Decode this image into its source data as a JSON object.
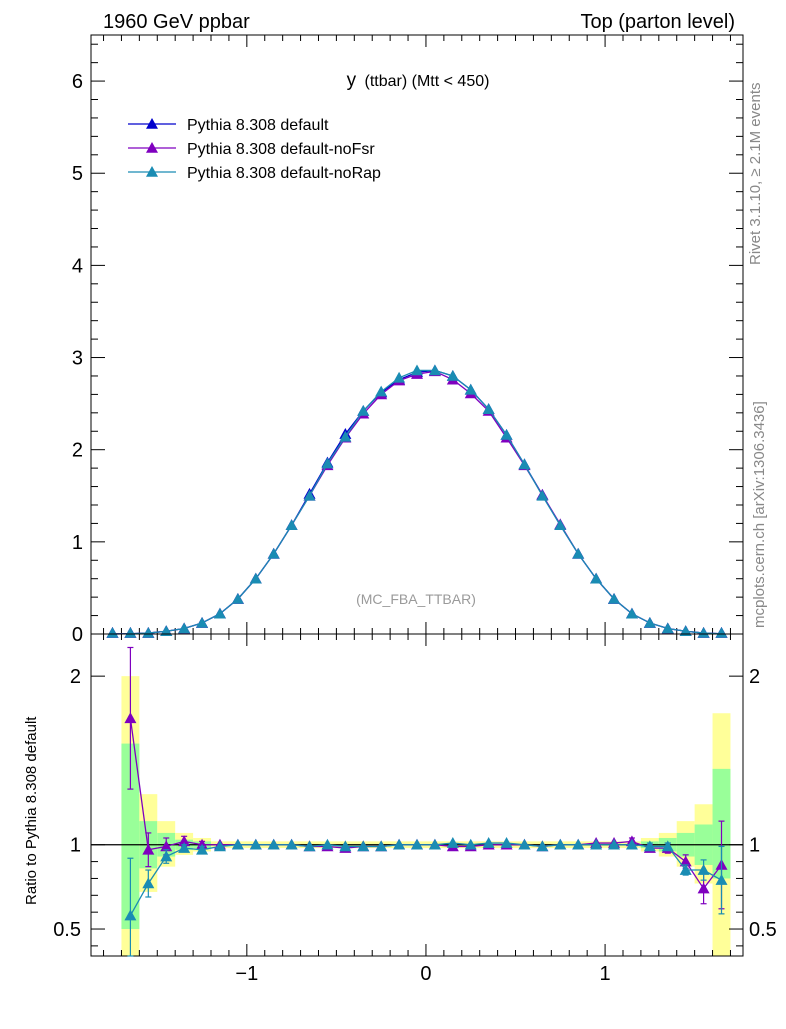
{
  "header": {
    "left": "1960 GeV ppbar",
    "right": "Top (parton level)"
  },
  "side_labels": {
    "rivet": "Rivet 3.1.10, ≥ 2.1M events",
    "mcplots": "mcplots.cern.ch [arXiv:1306.3436]"
  },
  "chart_data": [
    {
      "type": "line",
      "title_main": "y",
      "title_sub": "(ttbar) (Mtt < 450)",
      "watermark": "(MC_FBA_TTBAR)",
      "xlim": [
        -1.87,
        1.77
      ],
      "ylim": [
        0,
        6.5
      ],
      "yticks": [
        0,
        1,
        2,
        3,
        4,
        5,
        6
      ],
      "ytick_labels": [
        "0",
        "1",
        "2",
        "3",
        "4",
        "5",
        "6"
      ],
      "legend_position": "top-left",
      "x": [
        -1.75,
        -1.65,
        -1.55,
        -1.45,
        -1.35,
        -1.25,
        -1.15,
        -1.05,
        -0.95,
        -0.85,
        -0.75,
        -0.65,
        -0.55,
        -0.45,
        -0.35,
        -0.25,
        -0.15,
        -0.05,
        0.05,
        0.15,
        0.25,
        0.35,
        0.45,
        0.55,
        0.65,
        0.75,
        0.85,
        0.95,
        1.05,
        1.15,
        1.25,
        1.35,
        1.45,
        1.55,
        1.65
      ],
      "series": [
        {
          "name": "Pythia 8.308 default",
          "color": "#0000cc",
          "values": [
            0.0,
            0.003,
            0.01,
            0.03,
            0.06,
            0.12,
            0.22,
            0.38,
            0.6,
            0.87,
            1.18,
            1.52,
            1.86,
            2.17,
            2.42,
            2.62,
            2.76,
            2.84,
            2.86,
            2.8,
            2.65,
            2.44,
            2.16,
            1.84,
            1.51,
            1.18,
            0.87,
            0.6,
            0.38,
            0.22,
            0.12,
            0.06,
            0.03,
            0.01,
            0.003
          ]
        },
        {
          "name": "Pythia 8.308 default-noFsr",
          "color": "#7f00bf",
          "values": [
            0.0,
            0.003,
            0.01,
            0.03,
            0.06,
            0.12,
            0.22,
            0.38,
            0.6,
            0.87,
            1.18,
            1.5,
            1.83,
            2.13,
            2.39,
            2.6,
            2.75,
            2.82,
            2.85,
            2.76,
            2.61,
            2.42,
            2.13,
            1.83,
            1.51,
            1.19,
            0.87,
            0.6,
            0.38,
            0.22,
            0.12,
            0.06,
            0.03,
            0.01,
            0.003
          ]
        },
        {
          "name": "Pythia 8.308 default-noRap",
          "color": "#1a8cb3",
          "values": [
            0.0,
            0.003,
            0.01,
            0.03,
            0.06,
            0.12,
            0.22,
            0.38,
            0.6,
            0.87,
            1.18,
            1.5,
            1.85,
            2.14,
            2.42,
            2.63,
            2.78,
            2.86,
            2.86,
            2.8,
            2.65,
            2.44,
            2.16,
            1.84,
            1.5,
            1.18,
            0.87,
            0.6,
            0.38,
            0.22,
            0.12,
            0.06,
            0.03,
            0.01,
            0.003
          ]
        }
      ]
    },
    {
      "type": "line",
      "ylabel": "Ratio to Pythia 8.308 default",
      "xlim": [
        -1.87,
        1.77
      ],
      "ylim": [
        0.34,
        2.25
      ],
      "yticks": [
        0.5,
        1,
        2
      ],
      "ytick_labels": [
        "0.5",
        "1",
        "2"
      ],
      "xticks": [
        -1,
        0,
        1
      ],
      "xtick_labels": [
        "−1",
        "0",
        "1"
      ],
      "x": [
        -1.65,
        -1.55,
        -1.45,
        -1.35,
        -1.25,
        -1.15,
        -1.05,
        -0.95,
        -0.85,
        -0.75,
        -0.65,
        -0.55,
        -0.45,
        -0.35,
        -0.25,
        -0.15,
        -0.05,
        0.05,
        0.15,
        0.25,
        0.35,
        0.45,
        0.55,
        0.65,
        0.75,
        0.85,
        0.95,
        1.05,
        1.15,
        1.25,
        1.35,
        1.45,
        1.55,
        1.65
      ],
      "uncertainty_band": {
        "green_color": "#99ff99",
        "yellow_color": "#ffff99",
        "x_edges": [
          -1.7,
          -1.6,
          -1.5,
          -1.4,
          -1.3,
          -1.2,
          1.2,
          1.3,
          1.4,
          1.5,
          1.6,
          1.7
        ],
        "green_low": [
          0.5,
          0.86,
          0.93,
          0.97,
          0.98,
          0.99,
          0.98,
          0.96,
          0.93,
          0.88,
          0.8
        ],
        "green_high": [
          1.6,
          1.14,
          1.07,
          1.03,
          1.02,
          1.01,
          1.02,
          1.04,
          1.07,
          1.12,
          1.45
        ],
        "yellow_low": [
          0.34,
          0.72,
          0.87,
          0.94,
          0.96,
          0.98,
          0.96,
          0.93,
          0.87,
          0.77,
          0.34
        ],
        "yellow_high": [
          2.0,
          1.3,
          1.14,
          1.07,
          1.04,
          1.02,
          1.04,
          1.07,
          1.14,
          1.24,
          1.78
        ]
      },
      "series": [
        {
          "name": "Pythia 8.308 default-noFsr",
          "color": "#7f00bf",
          "values": [
            1.75,
            0.97,
            0.99,
            1.02,
            1.0,
            1.0,
            1.0,
            1.0,
            1.0,
            1.0,
            0.99,
            0.99,
            0.98,
            0.99,
            0.99,
            1.0,
            1.0,
            1.0,
            0.99,
            0.99,
            1.0,
            1.0,
            1.0,
            0.99,
            1.0,
            1.0,
            1.01,
            1.01,
            1.02,
            0.98,
            0.98,
            0.9,
            0.74,
            0.88
          ],
          "errors": [
            0.42,
            0.1,
            0.05,
            0.03,
            0.02,
            0.01,
            0.01,
            0.01,
            0.01,
            0.01,
            0.01,
            0.01,
            0.01,
            0.01,
            0.01,
            0.01,
            0.01,
            0.01,
            0.01,
            0.01,
            0.01,
            0.01,
            0.01,
            0.01,
            0.01,
            0.01,
            0.01,
            0.01,
            0.02,
            0.02,
            0.03,
            0.04,
            0.09,
            0.26
          ]
        },
        {
          "name": "Pythia 8.308 default-noRap",
          "color": "#1a8cb3",
          "values": [
            0.58,
            0.77,
            0.93,
            0.98,
            0.97,
            0.99,
            1.0,
            1.0,
            1.0,
            1.0,
            0.99,
            1.0,
            0.99,
            0.99,
            0.99,
            1.0,
            1.0,
            1.0,
            1.01,
            1.0,
            1.01,
            1.01,
            1.0,
            0.99,
            1.0,
            1.0,
            1.0,
            1.0,
            1.0,
            0.99,
            0.99,
            0.85,
            0.85,
            0.79
          ],
          "errors": [
            0.34,
            0.08,
            0.04,
            0.02,
            0.02,
            0.01,
            0.01,
            0.01,
            0.01,
            0.01,
            0.01,
            0.01,
            0.01,
            0.01,
            0.01,
            0.01,
            0.01,
            0.01,
            0.01,
            0.01,
            0.01,
            0.01,
            0.01,
            0.01,
            0.01,
            0.01,
            0.01,
            0.01,
            0.01,
            0.02,
            0.02,
            0.03,
            0.06,
            0.2
          ]
        }
      ]
    }
  ]
}
